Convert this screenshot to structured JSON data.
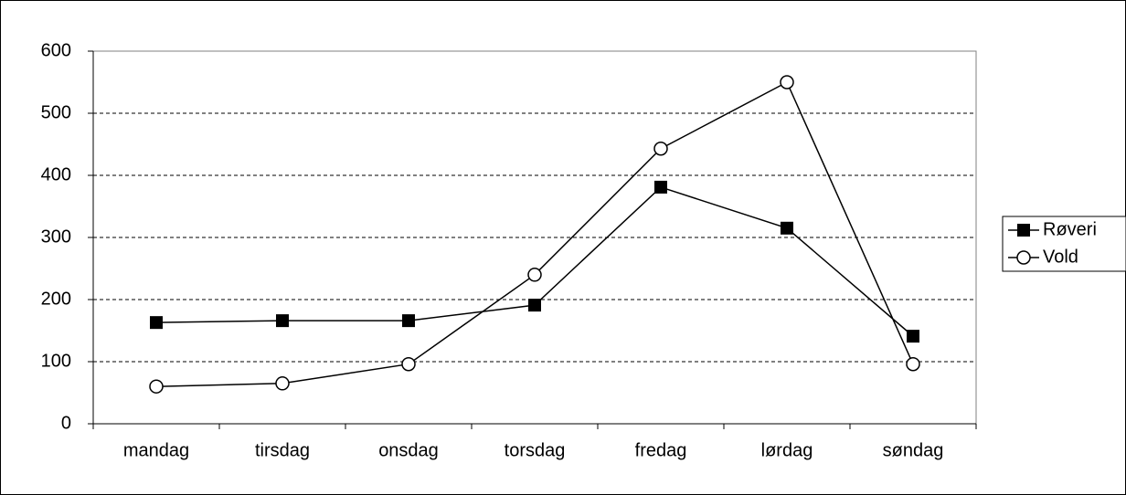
{
  "chart_data": {
    "type": "line",
    "categories": [
      "mandag",
      "tirsdag",
      "onsdag",
      "torsdag",
      "fredag",
      "lørdag",
      "søndag"
    ],
    "series": [
      {
        "name": "Røveri",
        "color": "#000000",
        "marker": "square",
        "values": [
          163,
          166,
          166,
          191,
          381,
          315,
          141
        ]
      },
      {
        "name": "Vold",
        "color": "#000000",
        "marker": "circle",
        "values": [
          60,
          65,
          96,
          240,
          443,
          550,
          96
        ]
      }
    ],
    "ylim": [
      0,
      600
    ],
    "yticks": [
      0,
      100,
      200,
      300,
      400,
      500,
      600
    ],
    "grid": true,
    "legend": "right"
  }
}
